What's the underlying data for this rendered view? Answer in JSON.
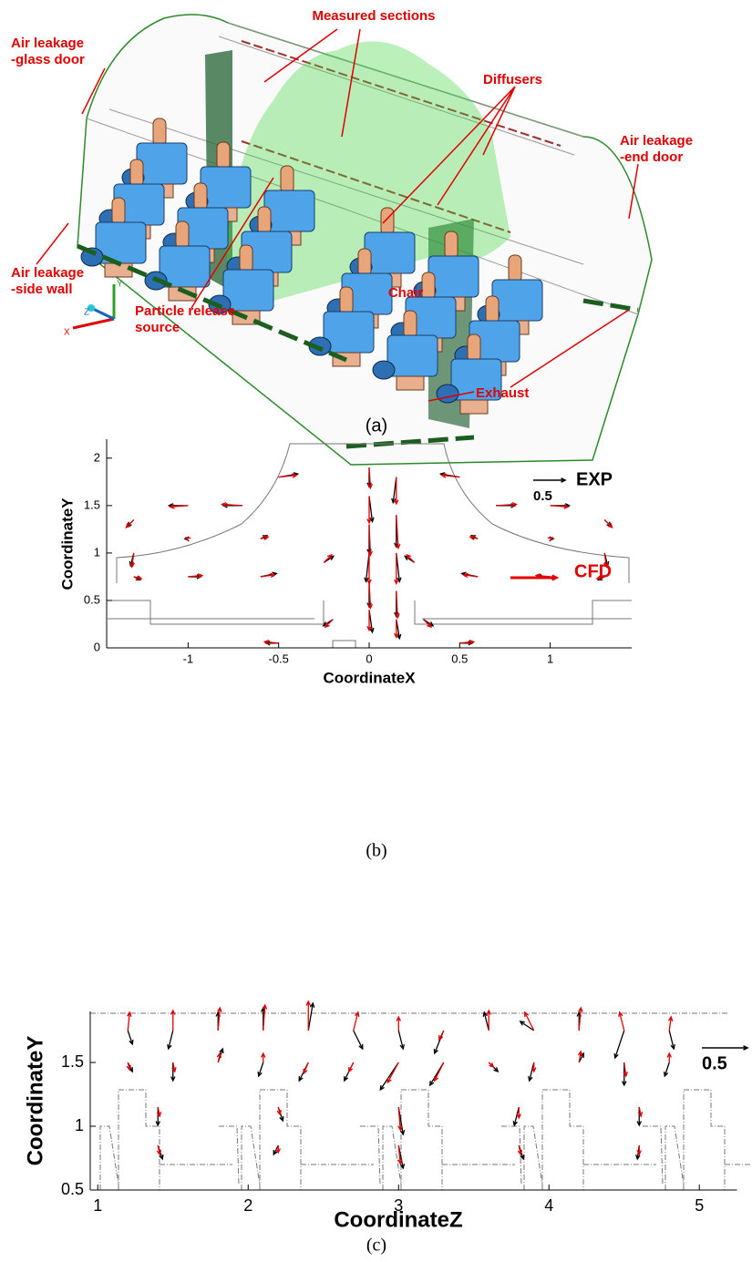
{
  "figure_a": {
    "labels": {
      "measured_sections": "Measured sections",
      "glass_door": [
        "Air leakage",
        "-glass door"
      ],
      "diffusers": "Diffusers",
      "end_door": [
        "Air leakage",
        "-end door"
      ],
      "side_wall": [
        "Air leakage",
        "-side wall"
      ],
      "particle_source": [
        "Particle release",
        "source"
      ],
      "chair": "Chair",
      "exhaust": "Exhaust"
    },
    "axes": {
      "x": "X",
      "y": "Y",
      "z": "Z"
    },
    "caption": "(a)"
  },
  "chart_data": [
    {
      "type": "quiver",
      "caption": "(b)",
      "x_label": "CoordinateX",
      "y_label": "CoordinateY",
      "xlim": [
        -1.45,
        1.45
      ],
      "ylim": [
        0,
        2.2
      ],
      "xticks": [
        -1,
        -0.5,
        0,
        0.5,
        1
      ],
      "yticks": [
        0,
        0.5,
        1,
        1.5,
        2
      ],
      "reference": 0.5,
      "legend": true,
      "points": {
        "x": [
          0,
          0,
          0,
          0,
          0,
          0,
          0.15,
          0.15,
          0.15,
          0.15,
          0.15,
          -0.5,
          -0.7,
          -1.0,
          -1.3,
          -1.3,
          -1.3,
          -1.0,
          -0.6,
          -0.25,
          -0.6,
          -1.0,
          0.5,
          0.7,
          1.0,
          1.3,
          1.3,
          1.3,
          1.0,
          0.6,
          0.25,
          0.6,
          1.0,
          -0.5,
          0.5,
          -0.2,
          0.3
        ],
        "y": [
          1.9,
          1.6,
          1.3,
          1.0,
          0.7,
          0.4,
          1.8,
          1.4,
          1.0,
          0.6,
          0.3,
          1.8,
          1.5,
          1.5,
          1.35,
          1.0,
          0.75,
          0.75,
          0.75,
          0.9,
          1.15,
          1.15,
          1.8,
          1.5,
          1.5,
          1.35,
          1.0,
          0.75,
          0.75,
          0.75,
          0.9,
          1.15,
          1.15,
          0.05,
          0.05,
          0.3,
          0.3
        ]
      },
      "series": [
        {
          "name": "EXP",
          "color": "#000000",
          "u": [
            0,
            0.05,
            0,
            -0.05,
            0,
            0.05,
            -0.05,
            0,
            0.05,
            0,
            0.05,
            0.3,
            -0.3,
            -0.3,
            -0.1,
            -0.05,
            0.1,
            0.2,
            0.25,
            0.15,
            0.1,
            -0.05,
            -0.3,
            0.3,
            0.3,
            0.1,
            0.05,
            -0.1,
            -0.2,
            -0.25,
            -0.15,
            -0.1,
            0.05,
            -0.2,
            0.2,
            -0.15,
            0.15
          ],
          "v": [
            -0.3,
            -0.4,
            -0.45,
            -0.45,
            -0.4,
            -0.35,
            -0.4,
            -0.5,
            -0.45,
            -0.4,
            -0.3,
            0.05,
            0,
            0,
            -0.1,
            -0.2,
            -0.05,
            0,
            0.05,
            0.1,
            0.05,
            0,
            0.05,
            0,
            0,
            -0.1,
            -0.2,
            -0.05,
            0,
            0.05,
            0.1,
            0.05,
            0,
            0,
            0,
            -0.1,
            -0.1
          ]
        },
        {
          "name": "CFD",
          "color": "#e00000",
          "u": [
            0.02,
            0,
            0.02,
            0,
            0.02,
            0,
            0,
            0.03,
            0,
            0.02,
            0,
            0.28,
            -0.32,
            -0.28,
            -0.12,
            -0.03,
            0.12,
            0.22,
            0.22,
            0.12,
            0.12,
            -0.03,
            -0.28,
            0.32,
            0.28,
            0.12,
            0.03,
            -0.12,
            -0.22,
            -0.22,
            -0.12,
            -0.12,
            0.03,
            -0.22,
            0.22,
            -0.12,
            0.12
          ],
          "v": [
            -0.32,
            -0.42,
            -0.48,
            -0.48,
            -0.42,
            -0.32,
            -0.42,
            -0.52,
            -0.48,
            -0.42,
            -0.28,
            0.03,
            0.02,
            -0.02,
            -0.12,
            -0.22,
            -0.03,
            0.02,
            0.03,
            0.12,
            0.03,
            0.02,
            0.03,
            0.02,
            -0.02,
            -0.12,
            -0.22,
            -0.03,
            0.02,
            0.03,
            0.12,
            0.03,
            0.02,
            0.02,
            0.02,
            -0.12,
            -0.12
          ]
        }
      ]
    },
    {
      "type": "quiver",
      "caption": "(c)",
      "x_label": "CoordinateZ",
      "y_label": "CoordinateY",
      "xlim": [
        0.95,
        5.25
      ],
      "ylim": [
        0.5,
        1.9
      ],
      "xticks": [
        1,
        2,
        3,
        4,
        5
      ],
      "yticks": [
        0.5,
        1,
        1.5
      ],
      "reference": 0.5,
      "legend": false,
      "points": {
        "x": [
          1.2,
          1.5,
          1.8,
          2.1,
          2.4,
          2.7,
          3.0,
          3.3,
          3.6,
          3.9,
          4.2,
          4.5,
          4.8,
          1.2,
          1.5,
          1.8,
          2.1,
          2.4,
          2.7,
          3.0,
          3.3,
          3.6,
          3.9,
          4.2,
          4.5,
          4.8,
          1.4,
          2.2,
          3.0,
          3.8,
          4.6,
          1.4,
          2.2,
          3.0,
          3.8,
          4.6
        ],
        "y": [
          1.75,
          1.75,
          1.75,
          1.75,
          1.75,
          1.75,
          1.75,
          1.75,
          1.75,
          1.75,
          1.75,
          1.75,
          1.75,
          1.5,
          1.5,
          1.5,
          1.5,
          1.5,
          1.5,
          1.5,
          1.5,
          1.5,
          1.5,
          1.5,
          1.5,
          1.5,
          1.15,
          1.15,
          1.15,
          1.15,
          1.15,
          0.85,
          0.85,
          0.85,
          0.85,
          0.85
        ]
      },
      "series": [
        {
          "color": "#000000",
          "u": [
            0.05,
            -0.05,
            0,
            0,
            0.05,
            0.1,
            0.05,
            -0.1,
            -0.05,
            -0.15,
            0,
            -0.1,
            0.05,
            0.05,
            0,
            0.05,
            -0.05,
            -0.1,
            -0.1,
            -0.2,
            -0.15,
            0.1,
            -0.05,
            0.05,
            0,
            -0.05,
            0,
            0.05,
            0.05,
            -0.05,
            0,
            0.05,
            -0.05,
            0.05,
            0.05,
            -0.02
          ],
          "v": [
            -0.15,
            -0.2,
            0.2,
            0.25,
            0.3,
            -0.2,
            -0.2,
            -0.25,
            0.2,
            0.1,
            0.2,
            -0.3,
            -0.2,
            -0.1,
            -0.2,
            0.15,
            -0.15,
            -0.2,
            -0.2,
            -0.3,
            -0.25,
            -0.1,
            -0.2,
            0.1,
            -0.25,
            -0.15,
            -0.2,
            -0.15,
            -0.3,
            -0.2,
            -0.2,
            -0.15,
            -0.1,
            -0.25,
            -0.15,
            -0.15
          ]
        },
        {
          "color": "#e00000",
          "u": [
            0.02,
            0,
            0.02,
            0.02,
            0,
            0.05,
            0,
            -0.05,
            0,
            -0.1,
            0.02,
            -0.05,
            0.02,
            0.02,
            0.02,
            0.02,
            0,
            -0.05,
            -0.05,
            -0.12,
            -0.1,
            0.05,
            0,
            0.02,
            0.02,
            0,
            0.02,
            0.02,
            0.02,
            0,
            0.02,
            0.02,
            0,
            0.02,
            0.02,
            0
          ],
          "v": [
            0.2,
            0.22,
            0.25,
            0.28,
            0.32,
            0.2,
            0.15,
            -0.1,
            0.22,
            0.2,
            0.25,
            0.2,
            0.15,
            -0.08,
            -0.1,
            0.1,
            0.1,
            -0.12,
            -0.1,
            -0.22,
            -0.2,
            -0.05,
            -0.1,
            0.12,
            -0.15,
            0.1,
            -0.1,
            -0.08,
            -0.25,
            -0.12,
            -0.1,
            -0.1,
            -0.08,
            -0.2,
            -0.1,
            -0.1
          ]
        }
      ]
    }
  ]
}
